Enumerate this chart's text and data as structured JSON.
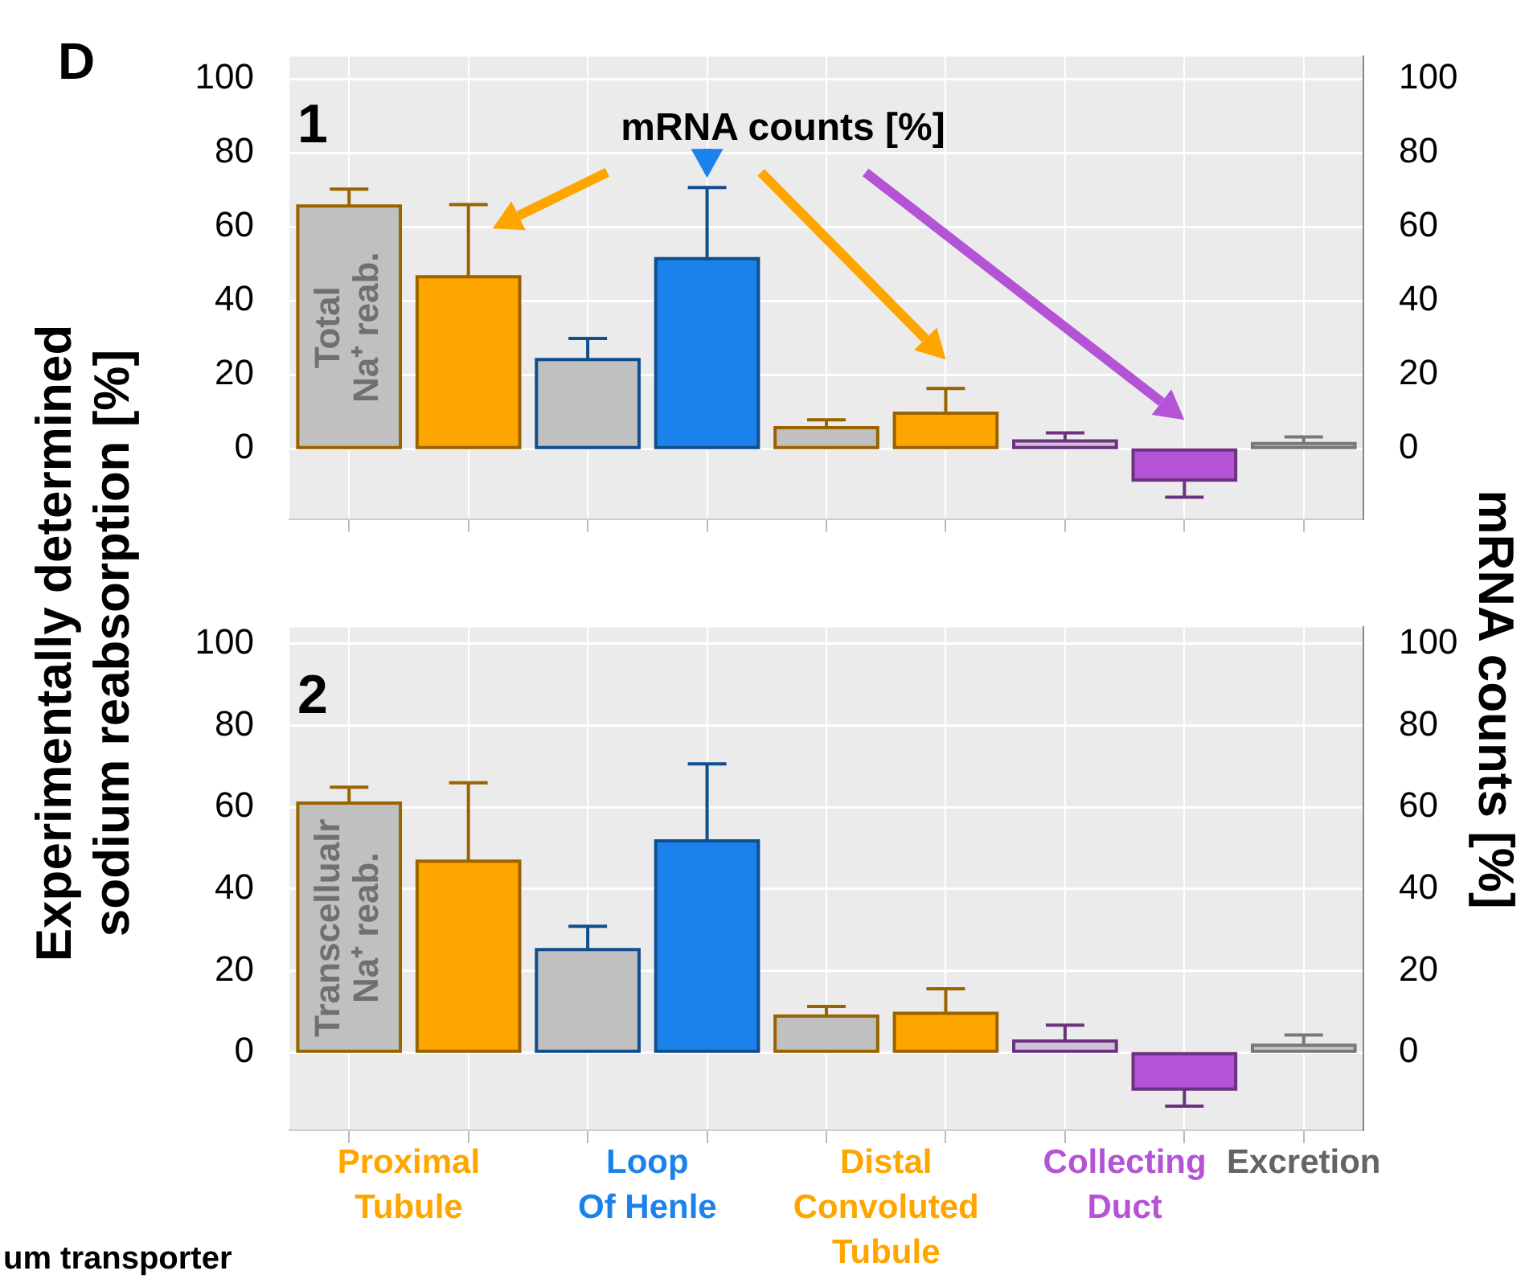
{
  "chart_data": [
    {
      "type": "bar",
      "ylabel": "Experimentally determined\nsodium reabsorption [%]",
      "y2label": "mRNA counts [%]",
      "categories": [
        null,
        null,
        null,
        null,
        null,
        null,
        null,
        null,
        null
      ],
      "values": [
        65.6,
        46.5,
        24.1,
        51.4,
        5.7,
        9.6,
        2.1,
        -8.5,
        1.4
      ],
      "errors": [
        [
          65.6,
          70.2
        ],
        [
          46.5,
          66
        ],
        [
          24.1,
          29.8
        ],
        [
          51.4,
          70.6
        ],
        [
          5.7,
          7.8
        ],
        [
          9.6,
          16.3
        ],
        [
          2.1,
          4.3
        ],
        [
          -13.1,
          -8.5
        ],
        [
          1.4,
          3.2
        ]
      ],
      "colors": [
        "#c0c0c0",
        "#ffa500",
        "#c0c0c0",
        "#1c82eb",
        "#c0c0c0",
        "#ffa500",
        "#d0c0d8",
        "#b453d6",
        "#c8c8c8"
      ],
      "ylim": [
        -19,
        106
      ],
      "yticks": [
        0,
        20,
        40,
        60,
        80,
        100
      ],
      "y2lim": [
        -19,
        106
      ],
      "y2ticks": [
        0,
        20,
        40,
        60,
        80,
        100
      ],
      "grid": true,
      "tick_labels": "y",
      "annotations": [
        "1",
        "Total\nNa⁺ reab.",
        "mRNA counts [%]",
        "D",
        "um transporter"
      ]
    },
    {
      "type": "bar",
      "categories": [
        null,
        "Proximal\nTubule",
        null,
        "Loop\nOf Henle",
        null,
        "Distal\nConvoluted\nTubule",
        null,
        "Collecting\nDuct",
        "Excretion"
      ],
      "values": [
        61,
        46.8,
        25.2,
        51.8,
        8.9,
        9.6,
        2.8,
        -8.9,
        1.8
      ],
      "errors": [
        [
          61,
          64.9
        ],
        [
          46.8,
          66
        ],
        [
          25.2,
          30.9
        ],
        [
          51.8,
          70.6
        ],
        [
          8.9,
          11.3
        ],
        [
          9.6,
          15.6
        ],
        [
          2.8,
          6.7
        ],
        [
          -13.1,
          -8.9
        ],
        [
          1.8,
          4.3
        ]
      ],
      "colors": [
        "#c0c0c0",
        "#ffa500",
        "#c0c0c0",
        "#1c82eb",
        "#c0c0c0",
        "#ffa500",
        "#d0c0d8",
        "#b453d6",
        "#c8c8c8"
      ],
      "ylim": [
        -19,
        104
      ],
      "yticks": [
        0,
        20,
        40,
        60,
        80,
        100
      ],
      "y2lim": [
        -19,
        104
      ],
      "y2ticks": [
        0,
        20,
        40,
        60,
        80,
        100
      ],
      "grid": true,
      "annotations": [
        "2",
        "Transcellualr\nNa⁺ reab."
      ]
    }
  ]
}
